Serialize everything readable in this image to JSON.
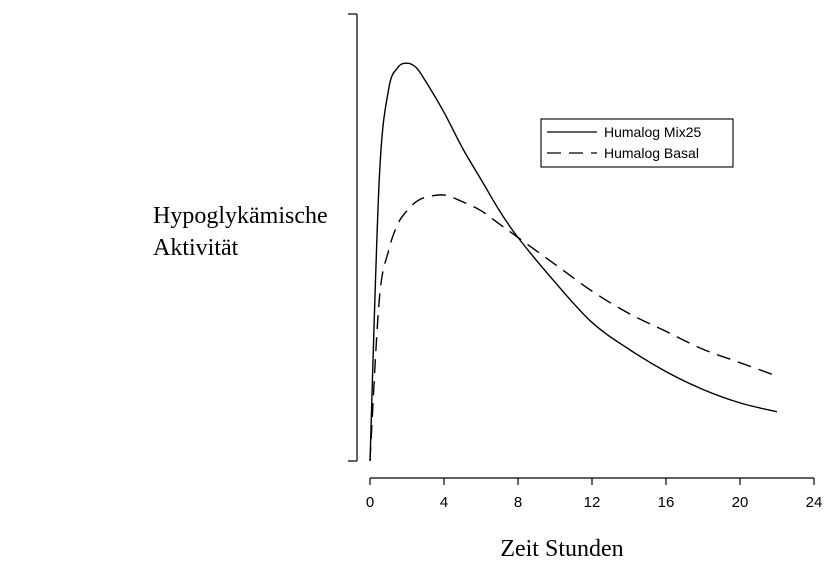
{
  "chart_data": {
    "type": "line",
    "title": "",
    "xlabel": "Zeit Stunden",
    "ylabel_lines": [
      "Hypoglykämische",
      "Aktivität"
    ],
    "xlim": [
      0,
      24
    ],
    "ylim": [
      0,
      1
    ],
    "x_ticks": [
      0,
      4,
      8,
      12,
      16,
      20,
      24
    ],
    "y_ticks_labeled": false,
    "grid": false,
    "legend_position": "top-right",
    "series": [
      {
        "name": "Humalog Mix25",
        "style": "solid",
        "color": "#000000",
        "x": [
          0,
          0.5,
          1,
          1.5,
          2,
          2.5,
          3,
          4,
          5,
          6,
          7,
          8,
          10,
          12,
          14,
          16,
          18,
          20,
          22
        ],
        "values": [
          0.0,
          0.63,
          0.83,
          0.88,
          0.89,
          0.88,
          0.85,
          0.78,
          0.7,
          0.63,
          0.56,
          0.5,
          0.4,
          0.31,
          0.25,
          0.2,
          0.16,
          0.13,
          0.11
        ]
      },
      {
        "name": "Humalog Basal",
        "style": "dashed",
        "color": "#000000",
        "x": [
          0,
          0.5,
          1,
          1.5,
          2,
          2.5,
          3,
          4,
          5,
          6,
          7,
          8,
          10,
          12,
          14,
          16,
          18,
          20,
          22
        ],
        "values": [
          0.0,
          0.36,
          0.47,
          0.53,
          0.56,
          0.58,
          0.59,
          0.595,
          0.58,
          0.56,
          0.53,
          0.5,
          0.44,
          0.38,
          0.33,
          0.29,
          0.25,
          0.22,
          0.19
        ]
      }
    ]
  }
}
